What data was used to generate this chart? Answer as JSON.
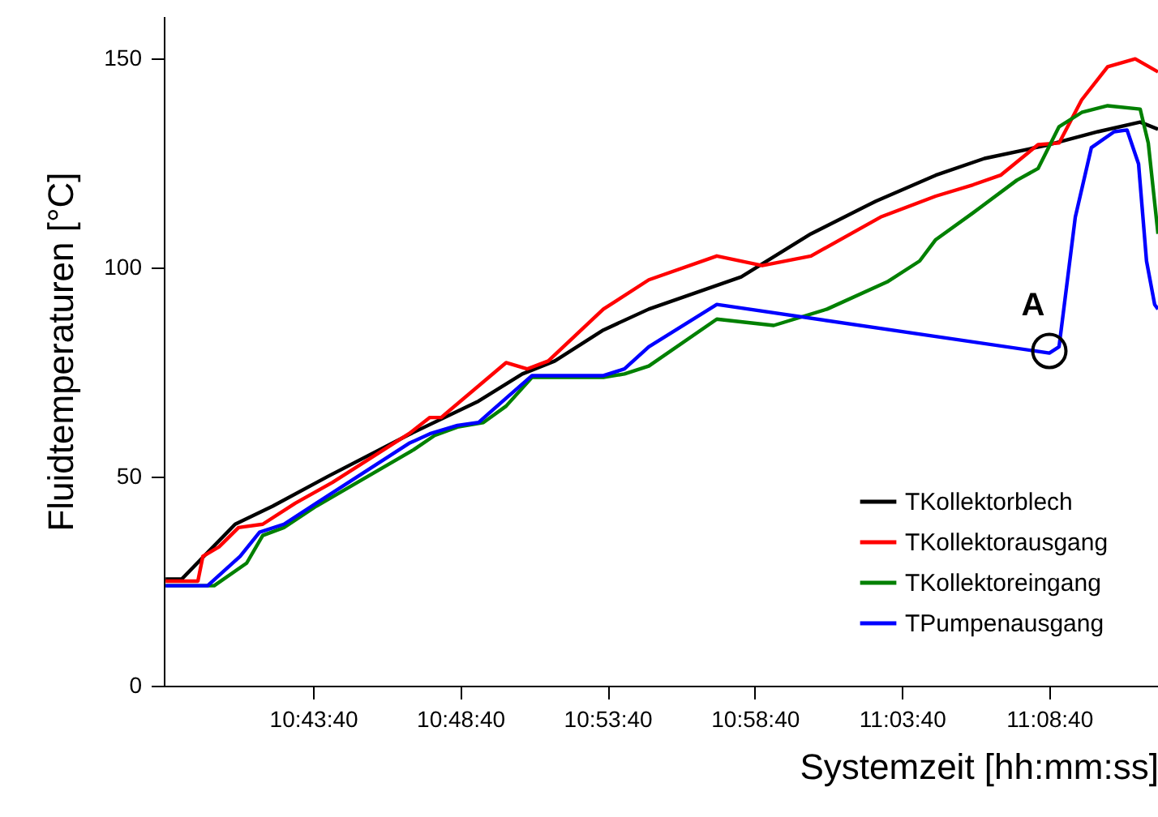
{
  "chart_data": {
    "type": "line",
    "xlabel": "Systemzeit [hh:mm:ss]",
    "ylabel": "Fluidtemperaturen [°C]",
    "xlim": [
      10.6433,
      11.206
    ],
    "ylim": [
      0,
      160
    ],
    "xticks": [
      {
        "value": 10.7278,
        "label": "10:43:40"
      },
      {
        "value": 10.8111,
        "label": "10:48:40"
      },
      {
        "value": 10.8944,
        "label": "10:53:40"
      },
      {
        "value": 10.9778,
        "label": "10:58:40"
      },
      {
        "value": 11.0611,
        "label": "11:03:40"
      },
      {
        "value": 11.1444,
        "label": "11:08:40"
      }
    ],
    "yticks": [
      0,
      50,
      100,
      150
    ],
    "grid": false,
    "legend": "bottom right",
    "marker": "none",
    "line_style": "solid",
    "annotations": [
      {
        "text": "A",
        "x": 11.1445,
        "y": 80
      }
    ],
    "series": [
      {
        "name": "TKollektorblech",
        "color": "#000000",
        "x": [
          10.6443,
          10.6535,
          10.6837,
          10.7049,
          10.7361,
          10.782,
          10.8214,
          10.8462,
          10.8646,
          10.8921,
          10.9178,
          10.9701,
          11.0096,
          11.0463,
          11.0802,
          11.1078,
          11.1445,
          11.172,
          11.1959,
          11.206
        ],
        "values": [
          25.5,
          25.5,
          38.6,
          42.9,
          50,
          60,
          68,
          74.5,
          77.6,
          85,
          90,
          97.7,
          108,
          115.8,
          122,
          126,
          129.3,
          132.4,
          134.7,
          133
        ]
      },
      {
        "name": "TKollektorausgang",
        "color": "#ff0000",
        "x": [
          10.6443,
          10.6626,
          10.6654,
          10.6746,
          10.6856,
          10.6993,
          10.7177,
          10.7388,
          10.782,
          10.7939,
          10.8003,
          10.837,
          10.8489,
          10.8609,
          10.8921,
          10.9178,
          10.9563,
          10.982,
          11.0096,
          11.049,
          11.0802,
          11.1013,
          11.1169,
          11.1381,
          11.15,
          11.1628,
          11.1775,
          11.1931,
          11.206
        ],
        "values": [
          25,
          25,
          30.9,
          33.2,
          37.8,
          38.6,
          43.6,
          48.6,
          60.2,
          64.1,
          64.1,
          77.2,
          75.7,
          77.6,
          90,
          97,
          102.7,
          100.4,
          102.7,
          112,
          117,
          119.7,
          122,
          129.3,
          129.7,
          140,
          147.9,
          149.8,
          146.7
        ]
      },
      {
        "name": "TKollektoreingang",
        "color": "#008000",
        "x": [
          10.6443,
          10.6718,
          10.6902,
          10.6993,
          10.7113,
          10.7296,
          10.7847,
          10.7966,
          10.8095,
          10.8242,
          10.837,
          10.8517,
          10.8701,
          10.8921,
          10.904,
          10.9178,
          10.9563,
          10.9885,
          11.0187,
          11.0527,
          11.0711,
          11.0802,
          11.1013,
          11.1261,
          11.1381,
          11.15,
          11.1628,
          11.1775,
          11.1959,
          11.2005,
          11.206
        ],
        "values": [
          23.9,
          23.9,
          29.3,
          35.9,
          37.8,
          42.9,
          56.4,
          59.8,
          61.8,
          62.9,
          66.8,
          73.7,
          73.7,
          73.7,
          74.5,
          76.4,
          87.6,
          86.1,
          90,
          96.5,
          101.5,
          106.6,
          113,
          120.8,
          123.6,
          133.6,
          137,
          138.6,
          137.8,
          129.7,
          108
        ]
      },
      {
        "name": "TPumpenausgang",
        "color": "#0000ff",
        "x": [
          10.6443,
          10.6681,
          10.6865,
          10.6975,
          10.7113,
          10.7296,
          10.782,
          10.7939,
          10.8095,
          10.8214,
          10.837,
          10.8517,
          10.8921,
          10.904,
          10.9178,
          10.9563,
          11.1445,
          11.15,
          11.1592,
          11.1683,
          11.1812,
          11.1885,
          11.195,
          11.1995,
          11.2041,
          11.206
        ],
        "values": [
          23.9,
          23.9,
          30.9,
          36.7,
          38.6,
          43.6,
          57.9,
          60.2,
          62.2,
          62.9,
          68.7,
          74.1,
          74.1,
          75.7,
          81,
          91.1,
          79.5,
          81,
          112,
          128.6,
          132.4,
          132.8,
          124.7,
          101.5,
          91.1,
          90
        ]
      }
    ]
  }
}
